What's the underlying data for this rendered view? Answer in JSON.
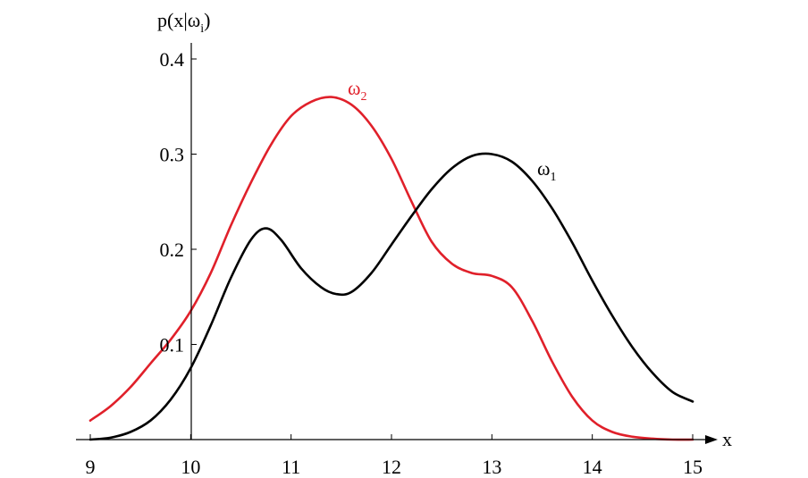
{
  "chart_data": {
    "type": "line",
    "title": "",
    "xlabel": "x",
    "ylabel": "p(x|ω",
    "ylabel_sub": "i",
    "ylabel_close": ")",
    "xlim": [
      9,
      15
    ],
    "ylim": [
      0,
      0.4
    ],
    "x_ticks": [
      {
        "value": 9,
        "label": "9"
      },
      {
        "value": 10,
        "label": "10"
      },
      {
        "value": 11,
        "label": "11"
      },
      {
        "value": 12,
        "label": "12"
      },
      {
        "value": 13,
        "label": "13"
      },
      {
        "value": 14,
        "label": "14"
      },
      {
        "value": 15,
        "label": "15"
      }
    ],
    "y_ticks": [
      {
        "value": 0.1,
        "label": "0.1"
      },
      {
        "value": 0.2,
        "label": "0.2"
      },
      {
        "value": 0.3,
        "label": "0.3"
      },
      {
        "value": 0.4,
        "label": "0.4"
      }
    ],
    "series": [
      {
        "name": "ω",
        "sub": "1",
        "color": "#000000",
        "x": [
          9.0,
          9.2,
          9.4,
          9.6,
          9.8,
          10.0,
          10.2,
          10.4,
          10.6,
          10.75,
          10.9,
          11.1,
          11.3,
          11.45,
          11.6,
          11.8,
          12.0,
          12.2,
          12.4,
          12.6,
          12.8,
          13.0,
          13.2,
          13.4,
          13.6,
          13.8,
          14.0,
          14.2,
          14.4,
          14.6,
          14.8,
          15.0
        ],
        "values": [
          0.0,
          0.002,
          0.008,
          0.02,
          0.042,
          0.075,
          0.12,
          0.17,
          0.21,
          0.222,
          0.21,
          0.18,
          0.16,
          0.153,
          0.155,
          0.175,
          0.205,
          0.235,
          0.263,
          0.285,
          0.298,
          0.3,
          0.292,
          0.272,
          0.243,
          0.207,
          0.167,
          0.13,
          0.097,
          0.07,
          0.05,
          0.04
        ]
      },
      {
        "name": "ω",
        "sub": "2",
        "color": "#e0202a",
        "x": [
          9.0,
          9.2,
          9.4,
          9.6,
          9.8,
          10.0,
          10.2,
          10.4,
          10.6,
          10.8,
          11.0,
          11.2,
          11.4,
          11.6,
          11.8,
          12.0,
          12.2,
          12.4,
          12.6,
          12.8,
          13.0,
          13.2,
          13.4,
          13.6,
          13.8,
          14.0,
          14.2,
          14.4,
          14.6,
          14.8,
          15.0
        ],
        "values": [
          0.02,
          0.035,
          0.055,
          0.08,
          0.105,
          0.135,
          0.175,
          0.225,
          0.27,
          0.31,
          0.34,
          0.355,
          0.36,
          0.352,
          0.33,
          0.295,
          0.25,
          0.208,
          0.185,
          0.175,
          0.172,
          0.16,
          0.125,
          0.082,
          0.045,
          0.02,
          0.008,
          0.003,
          0.001,
          0.0,
          0.0
        ]
      }
    ]
  }
}
